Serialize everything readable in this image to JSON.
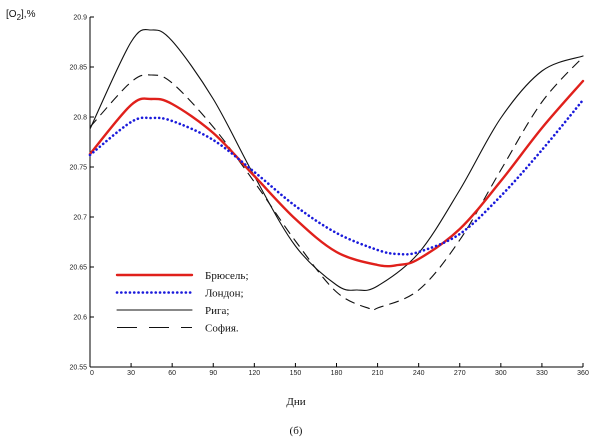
{
  "chart_data": {
    "type": "line",
    "ylabel": "[O2],%",
    "xlabel": "Дни",
    "caption": "(б)",
    "xlim": [
      0,
      360
    ],
    "ylim": [
      20.55,
      20.9
    ],
    "x_ticks": [
      0,
      30,
      60,
      90,
      120,
      150,
      180,
      210,
      240,
      270,
      300,
      330,
      360
    ],
    "y_ticks": [
      "20.55",
      "20.6",
      "20.65",
      "20.7",
      "20.75",
      "20.8",
      "20.85",
      "20.9"
    ],
    "legend_position": "bottom-left",
    "grid": false,
    "series": [
      {
        "name": "Брюсель;",
        "color": "#e0201b",
        "style": "solid-thick",
        "x": [
          0,
          30,
          45,
          60,
          90,
          120,
          150,
          180,
          210,
          225,
          240,
          270,
          300,
          330,
          360
        ],
        "y": [
          20.763,
          20.812,
          20.818,
          20.813,
          20.784,
          20.741,
          20.698,
          20.665,
          20.652,
          20.652,
          20.658,
          20.688,
          20.736,
          20.789,
          20.836
        ]
      },
      {
        "name": "Лондон;",
        "color": "#1a1adb",
        "style": "dotted",
        "x": [
          0,
          30,
          45,
          60,
          90,
          120,
          150,
          180,
          210,
          225,
          240,
          270,
          300,
          330,
          360
        ],
        "y": [
          20.762,
          20.795,
          20.799,
          20.796,
          20.777,
          20.745,
          20.711,
          20.684,
          20.667,
          20.663,
          20.665,
          20.683,
          20.721,
          20.767,
          20.817
        ]
      },
      {
        "name": "Рига;",
        "color": "#111111",
        "style": "solid-thin",
        "x": [
          0,
          30,
          45,
          60,
          90,
          120,
          150,
          180,
          195,
          210,
          240,
          270,
          300,
          330,
          360
        ],
        "y": [
          20.788,
          20.875,
          20.887,
          20.876,
          20.818,
          20.741,
          20.671,
          20.632,
          20.627,
          20.631,
          20.664,
          20.727,
          20.799,
          20.846,
          20.861
        ]
      },
      {
        "name": "София.",
        "color": "#111111",
        "style": "dashed",
        "x": [
          0,
          30,
          45,
          60,
          90,
          120,
          150,
          180,
          205,
          210,
          240,
          270,
          300,
          330,
          360
        ],
        "y": [
          20.79,
          20.835,
          20.842,
          20.834,
          20.79,
          20.735,
          20.676,
          20.625,
          20.608,
          20.609,
          20.627,
          20.677,
          20.747,
          20.815,
          20.86
        ]
      }
    ]
  }
}
